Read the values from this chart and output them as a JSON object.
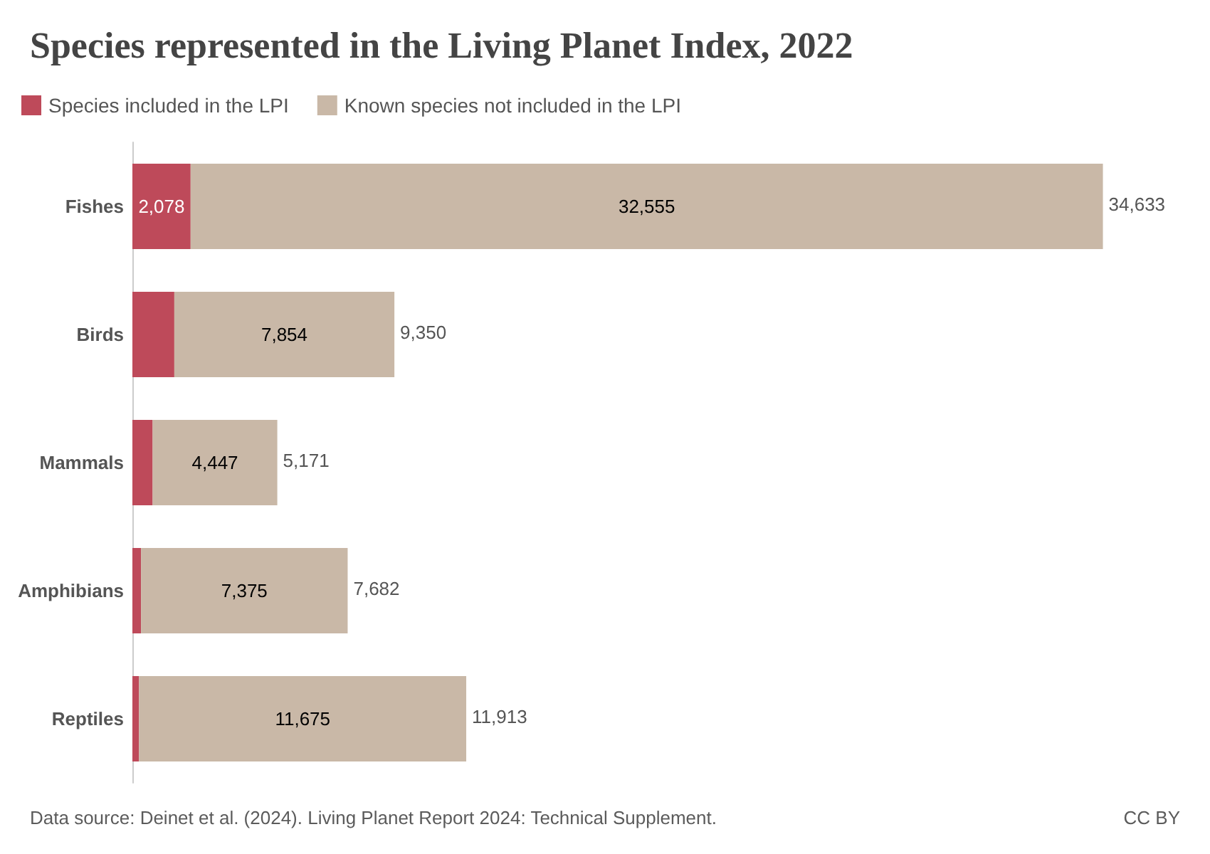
{
  "chart_data": {
    "type": "bar",
    "title": "Species represented in the Living Planet Index, 2022",
    "categories": [
      "Fishes",
      "Birds",
      "Mammals",
      "Amphibians",
      "Reptiles"
    ],
    "orientation": "horizontal",
    "stacked": true,
    "legend": "top left",
    "grid": false,
    "tick_labels": "y",
    "series": [
      {
        "name": "Species included in the LPI",
        "color": "#be4a5a",
        "values": [
          2078,
          1496,
          724,
          307,
          238
        ],
        "value_labels": [
          "2,078",
          null,
          null,
          null,
          null
        ]
      },
      {
        "name": "Known species not included in the LPI",
        "color": "#c9b8a7",
        "values": [
          32555,
          7854,
          4447,
          7375,
          11675
        ],
        "value_labels": [
          "32,555",
          "7,854",
          "4,447",
          "7,375",
          "11,675"
        ]
      }
    ],
    "totals": [
      "34,633",
      "9,350",
      "5,171",
      "7,682",
      "11,913"
    ],
    "annotations": [
      "Data source: Deinet et al. (2024). Living Planet Report 2024: Technical Supplement.",
      "CC BY"
    ]
  }
}
